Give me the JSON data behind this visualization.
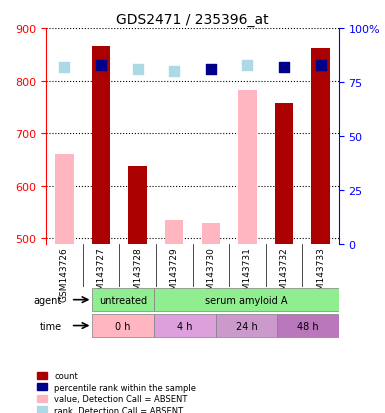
{
  "title": "GDS2471 / 235396_at",
  "samples": [
    "GSM143726",
    "GSM143727",
    "GSM143728",
    "GSM143729",
    "GSM143730",
    "GSM143731",
    "GSM143732",
    "GSM143733"
  ],
  "bar_values": [
    null,
    865,
    638,
    null,
    null,
    null,
    757,
    862
  ],
  "bar_absent_values": [
    660,
    null,
    null,
    535,
    530,
    783,
    null,
    null
  ],
  "rank_present": [
    null,
    83,
    null,
    null,
    81,
    null,
    82,
    83
  ],
  "rank_absent": [
    82,
    null,
    81,
    80,
    null,
    83,
    null,
    null
  ],
  "bar_color": "#AA0000",
  "bar_absent_color": "#FFB6C1",
  "rank_present_color": "#00008B",
  "rank_absent_color": "#ADD8E6",
  "ylim_left": [
    490,
    900
  ],
  "ylim_right": [
    0,
    100
  ],
  "yticks_left": [
    500,
    600,
    700,
    800,
    900
  ],
  "yticks_right": [
    0,
    25,
    50,
    75,
    100
  ],
  "agent_labels": [
    {
      "label": "untreated",
      "start": 0,
      "end": 2,
      "color": "#90EE90"
    },
    {
      "label": "serum amyloid A",
      "start": 2,
      "end": 8,
      "color": "#90EE90"
    }
  ],
  "time_labels": [
    {
      "label": "0 h",
      "start": 0,
      "end": 2,
      "color": "#FFB6C1"
    },
    {
      "label": "4 h",
      "start": 2,
      "end": 4,
      "color": "#DDA0DD"
    },
    {
      "label": "24 h",
      "start": 4,
      "end": 6,
      "color": "#CC99CC"
    },
    {
      "label": "48 h",
      "start": 6,
      "end": 8,
      "color": "#BB77BB"
    }
  ],
  "legend_items": [
    {
      "color": "#AA0000",
      "label": "count"
    },
    {
      "color": "#00008B",
      "label": "percentile rank within the sample"
    },
    {
      "color": "#FFB6C1",
      "label": "value, Detection Call = ABSENT"
    },
    {
      "color": "#ADD8E6",
      "label": "rank, Detection Call = ABSENT"
    }
  ],
  "grid_color": "black",
  "grid_style": "dotted"
}
